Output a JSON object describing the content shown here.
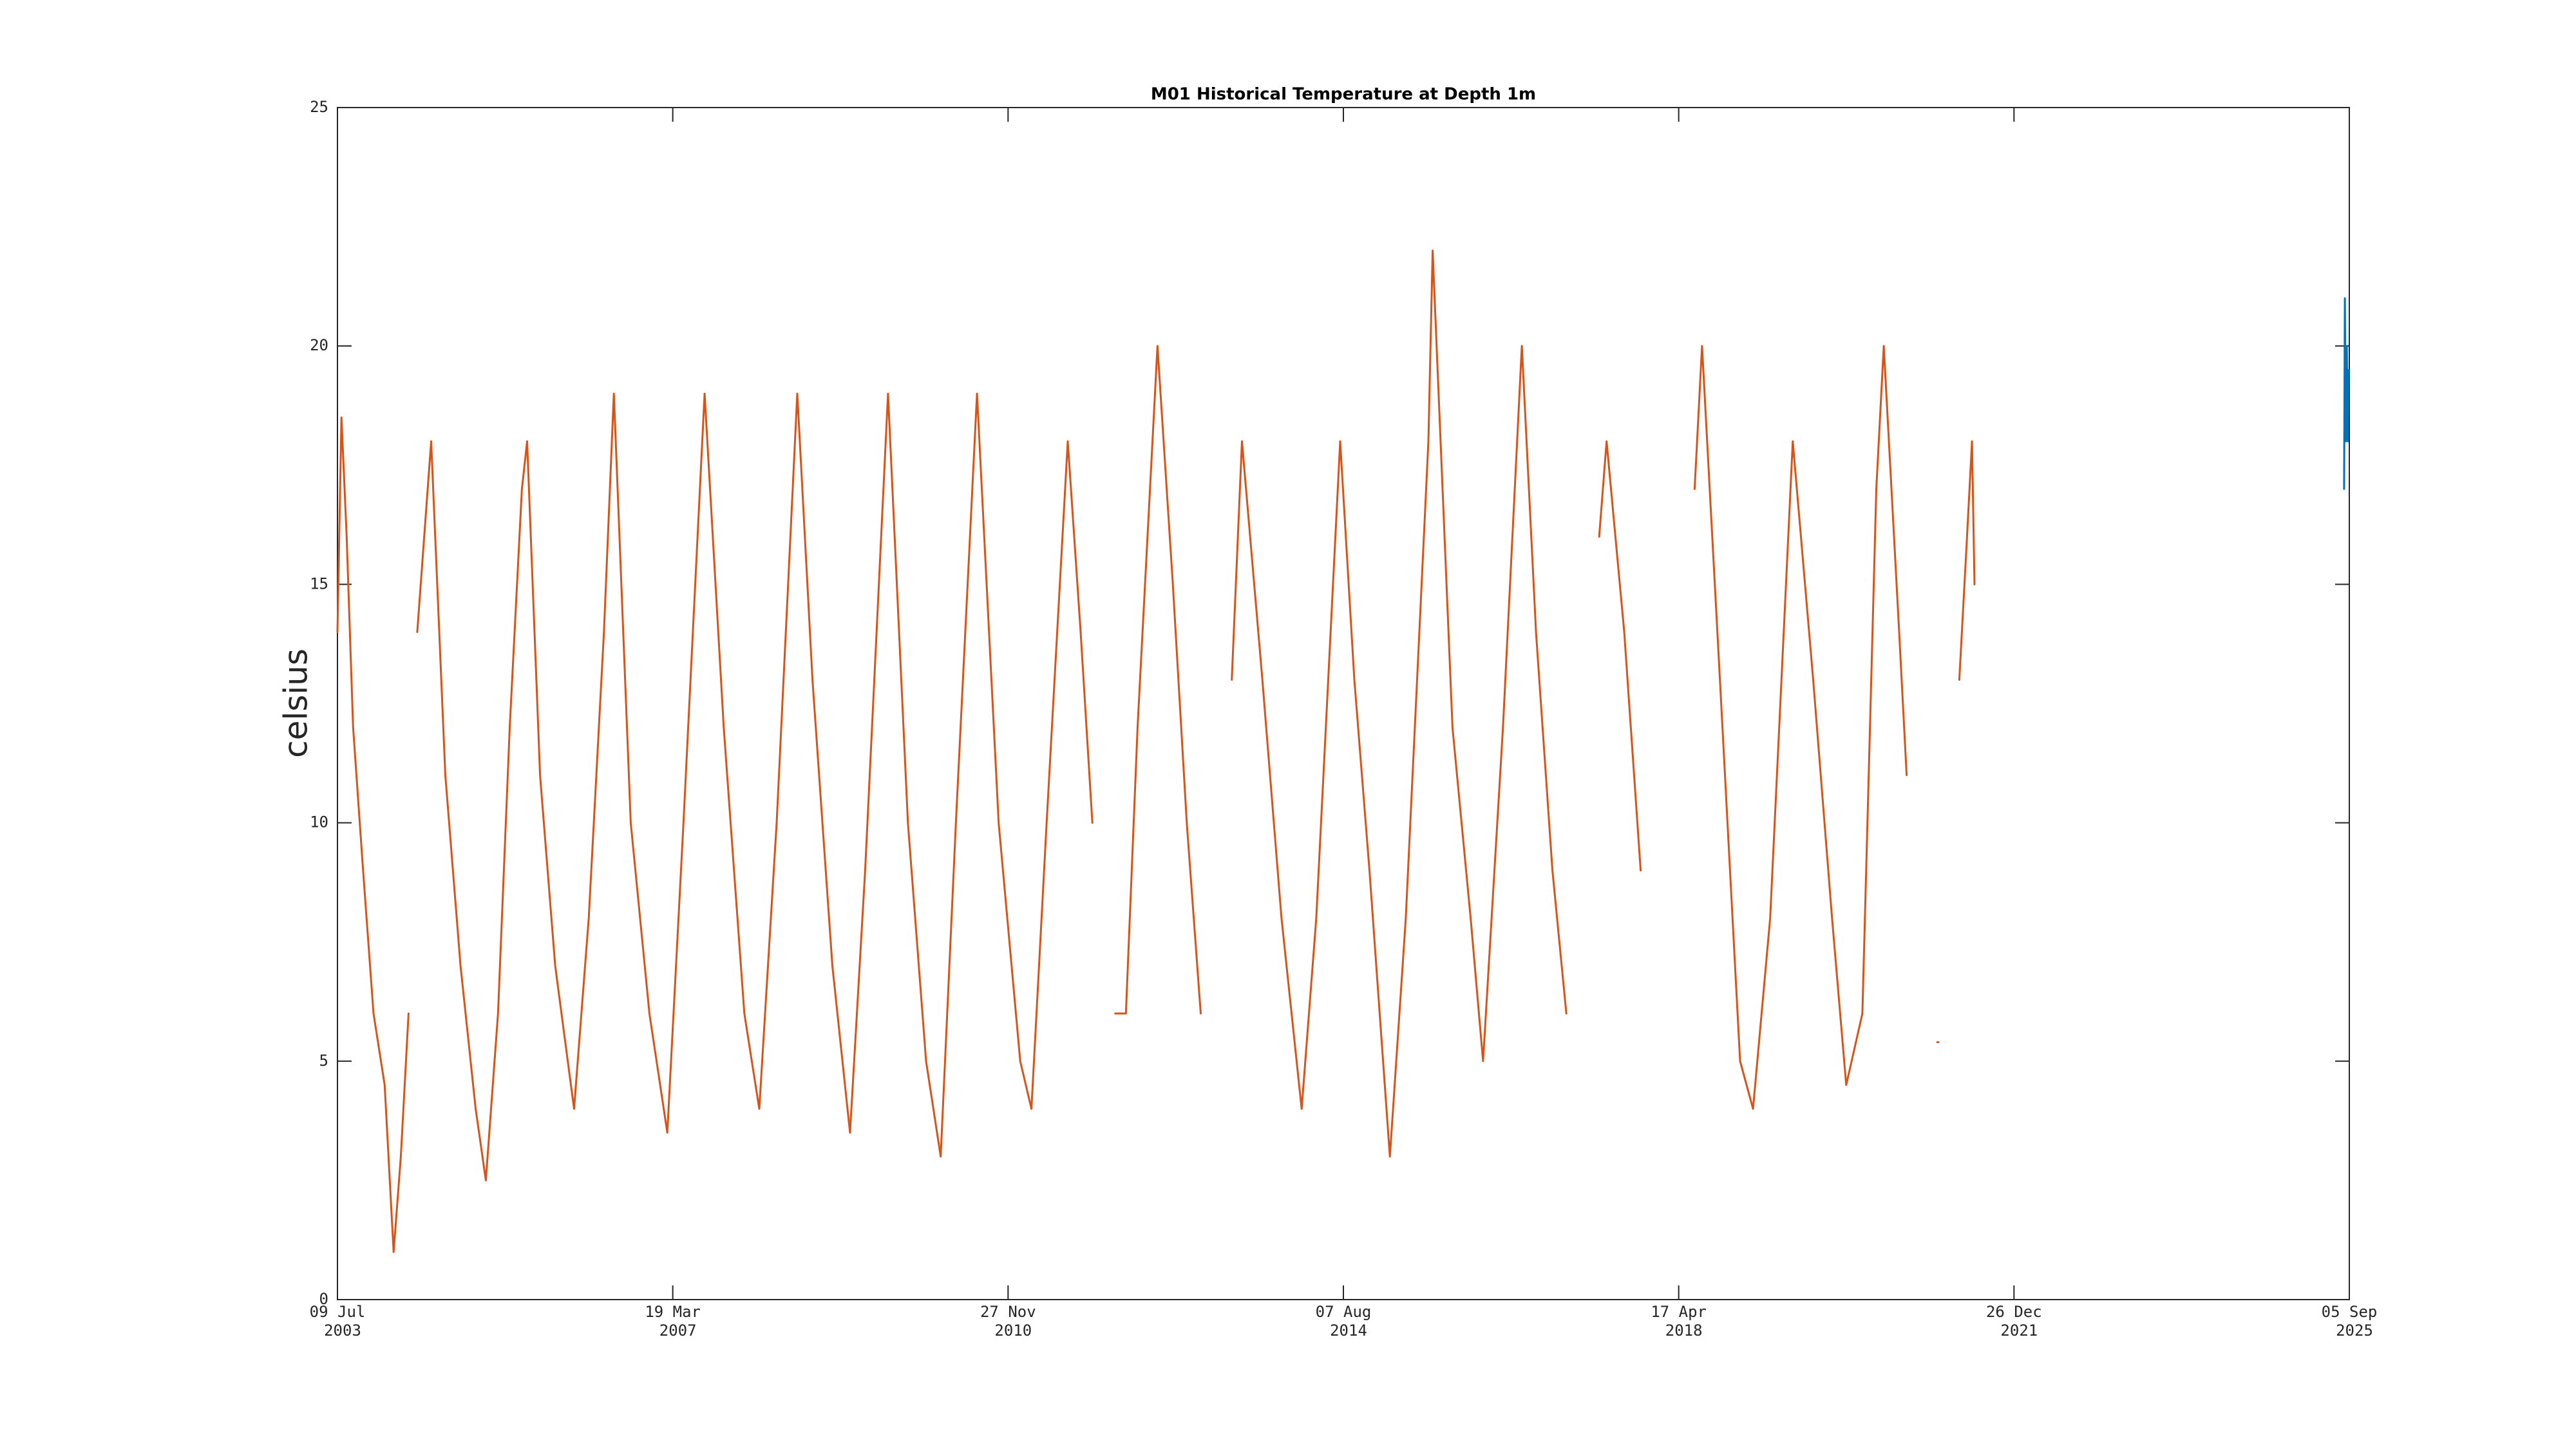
{
  "chart_data": {
    "type": "line",
    "title": "M01 Historical Temperature at Depth 1m",
    "y_label": "celsius",
    "xlim": [
      "2003-07-09",
      "2025-09-05"
    ],
    "xticks": [
      {
        "value": "2003-07-09",
        "label": [
          "09 Jul",
          "2003"
        ]
      },
      {
        "value": "2007-03-19",
        "label": [
          "19 Mar",
          "2007"
        ]
      },
      {
        "value": "2010-11-27",
        "label": [
          "27 Nov",
          "2010"
        ]
      },
      {
        "value": "2014-08-07",
        "label": [
          "07 Aug",
          "2014"
        ]
      },
      {
        "value": "2018-04-17",
        "label": [
          "17 Apr",
          "2018"
        ]
      },
      {
        "value": "2021-12-26",
        "label": [
          "26 Dec",
          "2021"
        ]
      },
      {
        "value": "2025-09-05",
        "label": [
          "05 Sep",
          "2025"
        ]
      }
    ],
    "ylim": [
      0,
      25
    ],
    "yticks": [
      0,
      5,
      10,
      15,
      20,
      25
    ],
    "grid": false,
    "series": [
      {
        "color": "#d95319",
        "x": [
          "2003-07-09",
          "2003-07-25",
          "2003-08-15",
          "2003-09-10",
          "2003-10-20",
          "2003-12-01",
          "2004-01-15",
          "2004-02-20",
          "2004-03-20",
          "2004-04-20",
          "2004-05-10",
          "2004-05-25",
          "2004-07-20",
          "2004-09-15",
          "2004-11-15",
          "2005-01-15",
          "2005-02-25",
          "2005-04-15",
          "2005-06-01",
          "2005-07-20",
          "2005-08-10",
          "2005-10-01",
          "2005-12-01",
          "2006-02-15",
          "2006-04-15",
          "2006-06-15",
          "2006-07-25",
          "2006-10-01",
          "2006-12-15",
          "2007-02-25",
          "2007-05-01",
          "2007-07-25",
          "2007-10-10",
          "2008-01-01",
          "2008-03-01",
          "2008-05-10",
          "2008-08-01",
          "2008-10-01",
          "2008-12-20",
          "2009-03-01",
          "2009-05-01",
          "2009-08-01",
          "2009-10-20",
          "2010-01-01",
          "2010-03-01",
          "2010-05-01",
          "2010-07-25",
          "2010-10-20",
          "2011-01-15",
          "2011-03-01",
          "2011-05-01",
          "2011-07-25",
          "2011-09-15",
          "2011-11-01",
          "2011-11-20",
          "2012-02-01",
          "2012-03-15",
          "2012-05-01",
          "2012-07-20",
          "2012-09-20",
          "2012-11-15",
          "2013-01-10",
          "2013-02-01",
          "2013-05-15",
          "2013-06-25",
          "2013-09-15",
          "2013-12-01",
          "2014-02-20",
          "2014-04-20",
          "2014-07-25",
          "2014-09-20",
          "2014-11-20",
          "2015-02-10",
          "2015-04-15",
          "2015-07-15",
          "2015-08-01",
          "2015-10-20",
          "2016-01-01",
          "2016-02-20",
          "2016-05-10",
          "2016-07-25",
          "2016-09-20",
          "2016-11-25",
          "2017-01-20",
          "2017-03-01",
          "2017-06-01",
          "2017-07-01",
          "2017-09-10",
          "2017-11-15",
          "2017-12-01",
          "2018-06-20",
          "2018-07-20",
          "2018-09-30",
          "2018-12-20",
          "2019-02-10",
          "2019-04-20",
          "2019-07-20",
          "2019-10-10",
          "2019-12-25",
          "2020-02-20",
          "2020-04-25",
          "2020-06-20",
          "2020-07-20",
          "2020-09-20",
          "2020-10-20",
          "2020-11-10",
          "2021-02-20",
          "2021-03-10",
          "2021-05-20",
          "2021-06-20",
          "2021-07-10",
          "2021-07-20"
        ],
        "values": [
          14,
          18.5,
          16,
          12,
          9,
          6,
          4.5,
          1,
          3,
          6,
          null,
          14,
          18,
          11,
          7,
          4,
          2.5,
          6,
          12,
          17,
          18,
          11,
          7,
          4,
          8,
          14,
          19,
          10,
          6,
          3.5,
          10,
          19,
          12,
          6,
          4,
          10,
          19,
          13,
          7,
          3.5,
          9,
          19,
          10,
          5,
          3,
          10,
          19,
          10,
          5,
          4,
          10,
          18,
          14,
          10,
          null,
          6,
          6,
          12,
          20,
          15,
          10,
          6,
          null,
          13,
          18,
          13,
          8,
          4,
          8,
          18,
          13,
          9,
          3,
          8,
          18,
          22,
          12,
          8,
          5,
          12,
          20,
          14,
          9,
          6,
          null,
          16,
          18,
          14,
          9,
          null,
          17,
          20,
          13,
          5,
          4,
          8,
          18,
          13,
          8,
          4.5,
          6,
          17,
          20,
          14,
          11,
          null,
          5.4,
          null,
          13,
          16,
          18,
          15
        ]
      },
      {
        "color": "#0072bd",
        "x": [
          "2025-08-15",
          "2025-08-18",
          "2025-08-22",
          "2025-08-26",
          "2025-08-30",
          "2025-09-03"
        ],
        "values": [
          17,
          21,
          18,
          20,
          18,
          19.5
        ]
      }
    ]
  }
}
